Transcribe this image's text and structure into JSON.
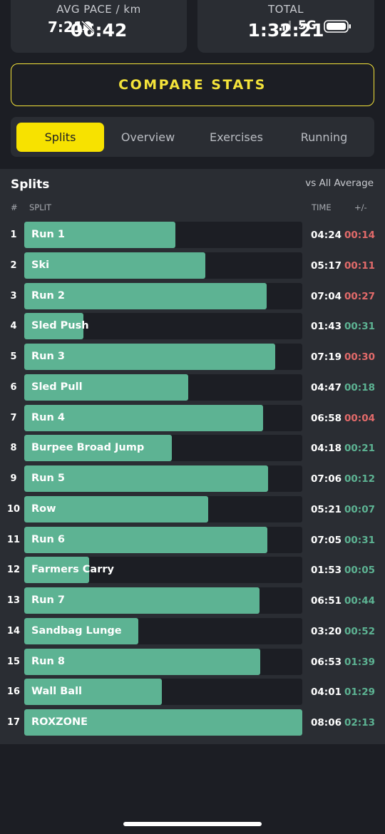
{
  "stats": {
    "pace_label": "AVG PACE / km",
    "pace_value": "06:42",
    "total_label": "TOTAL",
    "total_value": "1:32:21"
  },
  "status_bar": {
    "time": "7:21",
    "network": "5G"
  },
  "compare_button": "COMPARE STATS",
  "tabs": [
    {
      "label": "Splits",
      "active": true
    },
    {
      "label": "Overview",
      "active": false
    },
    {
      "label": "Exercises",
      "active": false
    },
    {
      "label": "Running",
      "active": false
    }
  ],
  "splits": {
    "title": "Splits",
    "comparison": "vs All Average",
    "headers": {
      "num": "#",
      "split": "SPLIT",
      "time": "TIME",
      "delta": "+/-"
    },
    "max_bar_seconds": 486,
    "colors": {
      "bar": "#5db393",
      "slower": "#e26a6a",
      "faster": "#5db393"
    },
    "rows": [
      {
        "num": "1",
        "name": "Run 1",
        "time": "04:24",
        "delta": "00:14",
        "slower": true,
        "seconds": 264
      },
      {
        "num": "2",
        "name": "Ski",
        "time": "05:17",
        "delta": "00:11",
        "slower": true,
        "seconds": 317
      },
      {
        "num": "3",
        "name": "Run 2",
        "time": "07:04",
        "delta": "00:27",
        "slower": true,
        "seconds": 424
      },
      {
        "num": "4",
        "name": "Sled Push",
        "time": "01:43",
        "delta": "00:31",
        "slower": false,
        "seconds": 103
      },
      {
        "num": "5",
        "name": "Run 3",
        "time": "07:19",
        "delta": "00:30",
        "slower": true,
        "seconds": 439
      },
      {
        "num": "6",
        "name": "Sled Pull",
        "time": "04:47",
        "delta": "00:18",
        "slower": false,
        "seconds": 287
      },
      {
        "num": "7",
        "name": "Run 4",
        "time": "06:58",
        "delta": "00:04",
        "slower": true,
        "seconds": 418
      },
      {
        "num": "8",
        "name": "Burpee Broad Jump",
        "time": "04:18",
        "delta": "00:21",
        "slower": false,
        "seconds": 258
      },
      {
        "num": "9",
        "name": "Run 5",
        "time": "07:06",
        "delta": "00:12",
        "slower": false,
        "seconds": 426
      },
      {
        "num": "10",
        "name": "Row",
        "time": "05:21",
        "delta": "00:07",
        "slower": false,
        "seconds": 321
      },
      {
        "num": "11",
        "name": "Run 6",
        "time": "07:05",
        "delta": "00:31",
        "slower": false,
        "seconds": 425
      },
      {
        "num": "12",
        "name": "Farmers Carry",
        "time": "01:53",
        "delta": "00:05",
        "slower": false,
        "seconds": 113
      },
      {
        "num": "13",
        "name": "Run 7",
        "time": "06:51",
        "delta": "00:44",
        "slower": false,
        "seconds": 411
      },
      {
        "num": "14",
        "name": "Sandbag Lunge",
        "time": "03:20",
        "delta": "00:52",
        "slower": false,
        "seconds": 200
      },
      {
        "num": "15",
        "name": "Run 8",
        "time": "06:53",
        "delta": "01:39",
        "slower": false,
        "seconds": 413
      },
      {
        "num": "16",
        "name": "Wall Ball",
        "time": "04:01",
        "delta": "01:29",
        "slower": false,
        "seconds": 241
      },
      {
        "num": "17",
        "name": "ROXZONE",
        "time": "08:06",
        "delta": "02:13",
        "slower": false,
        "seconds": 486
      }
    ]
  }
}
